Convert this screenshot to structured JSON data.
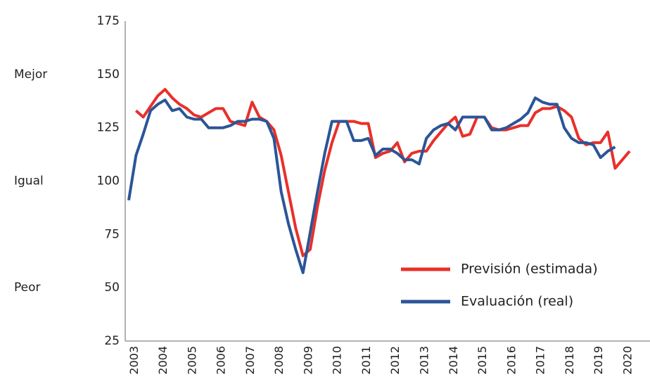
{
  "chart_data": {
    "type": "line",
    "categories": [
      "2003",
      null,
      null,
      null,
      "2004",
      null,
      null,
      null,
      "2005",
      null,
      null,
      null,
      "2006",
      null,
      null,
      null,
      "2007",
      null,
      null,
      null,
      "2008",
      null,
      null,
      null,
      "2009",
      null,
      null,
      null,
      "2010",
      null,
      null,
      null,
      "2011",
      null,
      null,
      null,
      "2012",
      null,
      null,
      null,
      "2013",
      null,
      null,
      null,
      "2014",
      null,
      null,
      null,
      "2015",
      null,
      null,
      null,
      "2016",
      null,
      null,
      null,
      "2017",
      null,
      null,
      null,
      "2018",
      null,
      null,
      null,
      "2019",
      null,
      null,
      null,
      "2020",
      null
    ],
    "series": [
      {
        "name": "Previsión (estimada)",
        "color": "#e8302a",
        "values": [
          null,
          133,
          130,
          135,
          140,
          143,
          139,
          136,
          134,
          131,
          130,
          132,
          134,
          134,
          128,
          127,
          126,
          137,
          130,
          128,
          124,
          112,
          95,
          78,
          65,
          68,
          88,
          105,
          118,
          128,
          128,
          128,
          127,
          127,
          111,
          113,
          114,
          118,
          109,
          113,
          114,
          114,
          119,
          123,
          127,
          130,
          121,
          122,
          130,
          130,
          125,
          124,
          124,
          125,
          126,
          126,
          132,
          134,
          134,
          135,
          133,
          130,
          120,
          117,
          118,
          118,
          123,
          106,
          110,
          114
        ]
      },
      {
        "name": "Evaluación (real)",
        "color": "#2b5597",
        "values": [
          91,
          112,
          122,
          133,
          136,
          138,
          133,
          134,
          130,
          129,
          129,
          125,
          125,
          125,
          126,
          128,
          128,
          129,
          129,
          128,
          120,
          95,
          80,
          68,
          57,
          76,
          95,
          113,
          128,
          128,
          128,
          119,
          119,
          120,
          112,
          115,
          115,
          113,
          110,
          110,
          108,
          120,
          124,
          126,
          127,
          124,
          130,
          130,
          130,
          130,
          124,
          124,
          125,
          127,
          129,
          132,
          139,
          137,
          136,
          136,
          125,
          120,
          118,
          118,
          117,
          111,
          114,
          116,
          null,
          null
        ]
      }
    ],
    "ylim": [
      25,
      175
    ],
    "yticks": [
      25,
      50,
      75,
      100,
      125,
      150,
      175
    ],
    "side_labels": [
      {
        "value": 150,
        "label": "Mejor"
      },
      {
        "value": 100,
        "label": "Igual"
      },
      {
        "value": 50,
        "label": "Peor"
      }
    ],
    "legend": "lower right"
  }
}
